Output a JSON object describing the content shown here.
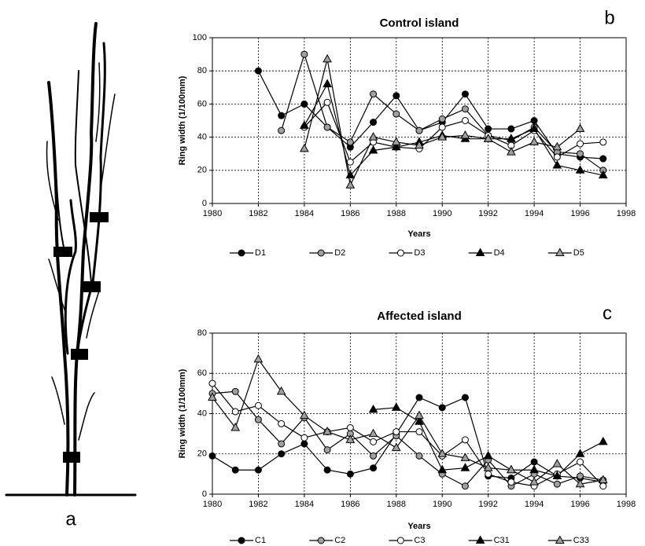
{
  "panel_a": {
    "label": "a"
  },
  "chart_data": [
    {
      "type": "line",
      "panel_label": "b",
      "title": "Control island",
      "x_label": "Years",
      "y_label": "Ring width (1/100mm)",
      "x": [
        1982,
        1983,
        1984,
        1985,
        1986,
        1987,
        1988,
        1989,
        1990,
        1991,
        1992,
        1993,
        1994,
        1995,
        1996,
        1997
      ],
      "xlim": [
        1980,
        1998
      ],
      "xticks": [
        1980,
        1982,
        1984,
        1986,
        1988,
        1990,
        1992,
        1994,
        1996,
        1998
      ],
      "ylim": [
        0,
        100
      ],
      "yticks": [
        0,
        20,
        40,
        60,
        80,
        100
      ],
      "grid": true,
      "line_color": "#000000",
      "series": [
        {
          "name": "D1",
          "color": "#000000",
          "marker": "circle",
          "values": [
            80,
            53,
            60,
            46,
            34,
            49,
            65,
            44,
            49,
            66,
            45,
            45,
            50,
            30,
            28,
            27
          ]
        },
        {
          "name": "D2",
          "color": "#a0a0a0",
          "marker": "circle",
          "values": [
            null,
            44,
            90,
            46,
            37,
            66,
            54,
            44,
            51,
            57,
            41,
            38,
            46,
            31,
            30,
            20
          ]
        },
        {
          "name": "D3",
          "color": "#ffffff",
          "marker": "circle",
          "values": [
            null,
            null,
            46,
            61,
            25,
            37,
            34,
            33,
            46,
            50,
            41,
            35,
            44,
            28,
            36,
            37
          ]
        },
        {
          "name": "D4",
          "color": "#000000",
          "marker": "triangle",
          "values": [
            null,
            null,
            47,
            72,
            17,
            32,
            34,
            37,
            41,
            39,
            39,
            39,
            45,
            23,
            20,
            17
          ]
        },
        {
          "name": "D5",
          "color": "#a0a0a0",
          "marker": "triangle",
          "values": [
            null,
            null,
            33,
            87,
            11,
            40,
            37,
            35,
            40,
            41,
            39,
            31,
            37,
            34,
            45,
            null
          ]
        }
      ]
    },
    {
      "type": "line",
      "panel_label": "c",
      "title": "Affected island",
      "x_label": "Years",
      "y_label": "Ring width (1/100mm)",
      "x": [
        1980,
        1981,
        1982,
        1983,
        1984,
        1985,
        1986,
        1987,
        1988,
        1989,
        1990,
        1991,
        1992,
        1993,
        1994,
        1995,
        1996,
        1997
      ],
      "xlim": [
        1980,
        1998
      ],
      "xticks": [
        1980,
        1982,
        1984,
        1986,
        1988,
        1990,
        1992,
        1994,
        1996,
        1998
      ],
      "ylim": [
        0,
        80
      ],
      "yticks": [
        0,
        20,
        40,
        60,
        80
      ],
      "grid": true,
      "line_color": "#000000",
      "series": [
        {
          "name": "C1",
          "color": "#000000",
          "marker": "circle",
          "values": [
            19,
            12,
            12,
            20,
            25,
            12,
            10,
            13,
            30,
            48,
            43,
            48,
            9,
            8,
            16,
            9,
            8,
            6
          ]
        },
        {
          "name": "C2",
          "color": "#a0a0a0",
          "marker": "circle",
          "values": [
            50,
            51,
            37,
            25,
            38,
            22,
            30,
            19,
            29,
            19,
            10,
            4,
            17,
            4,
            10,
            5,
            9,
            7
          ]
        },
        {
          "name": "C3",
          "color": "#ffffff",
          "marker": "circle",
          "values": [
            55,
            41,
            44,
            35,
            28,
            31,
            33,
            26,
            31,
            31,
            19,
            27,
            10,
            6,
            4,
            10,
            16,
            4
          ]
        },
        {
          "name": "C31",
          "color": "#000000",
          "marker": "triangle",
          "values": [
            null,
            null,
            null,
            null,
            null,
            null,
            null,
            42,
            43,
            36,
            12,
            13,
            19,
            12,
            12,
            9,
            20,
            26
          ]
        },
        {
          "name": "C33",
          "color": "#a0a0a0",
          "marker": "triangle",
          "values": [
            48,
            33,
            67,
            51,
            39,
            31,
            27,
            30,
            23,
            39,
            20,
            18,
            13,
            12,
            6,
            15,
            5,
            7
          ]
        }
      ]
    }
  ]
}
